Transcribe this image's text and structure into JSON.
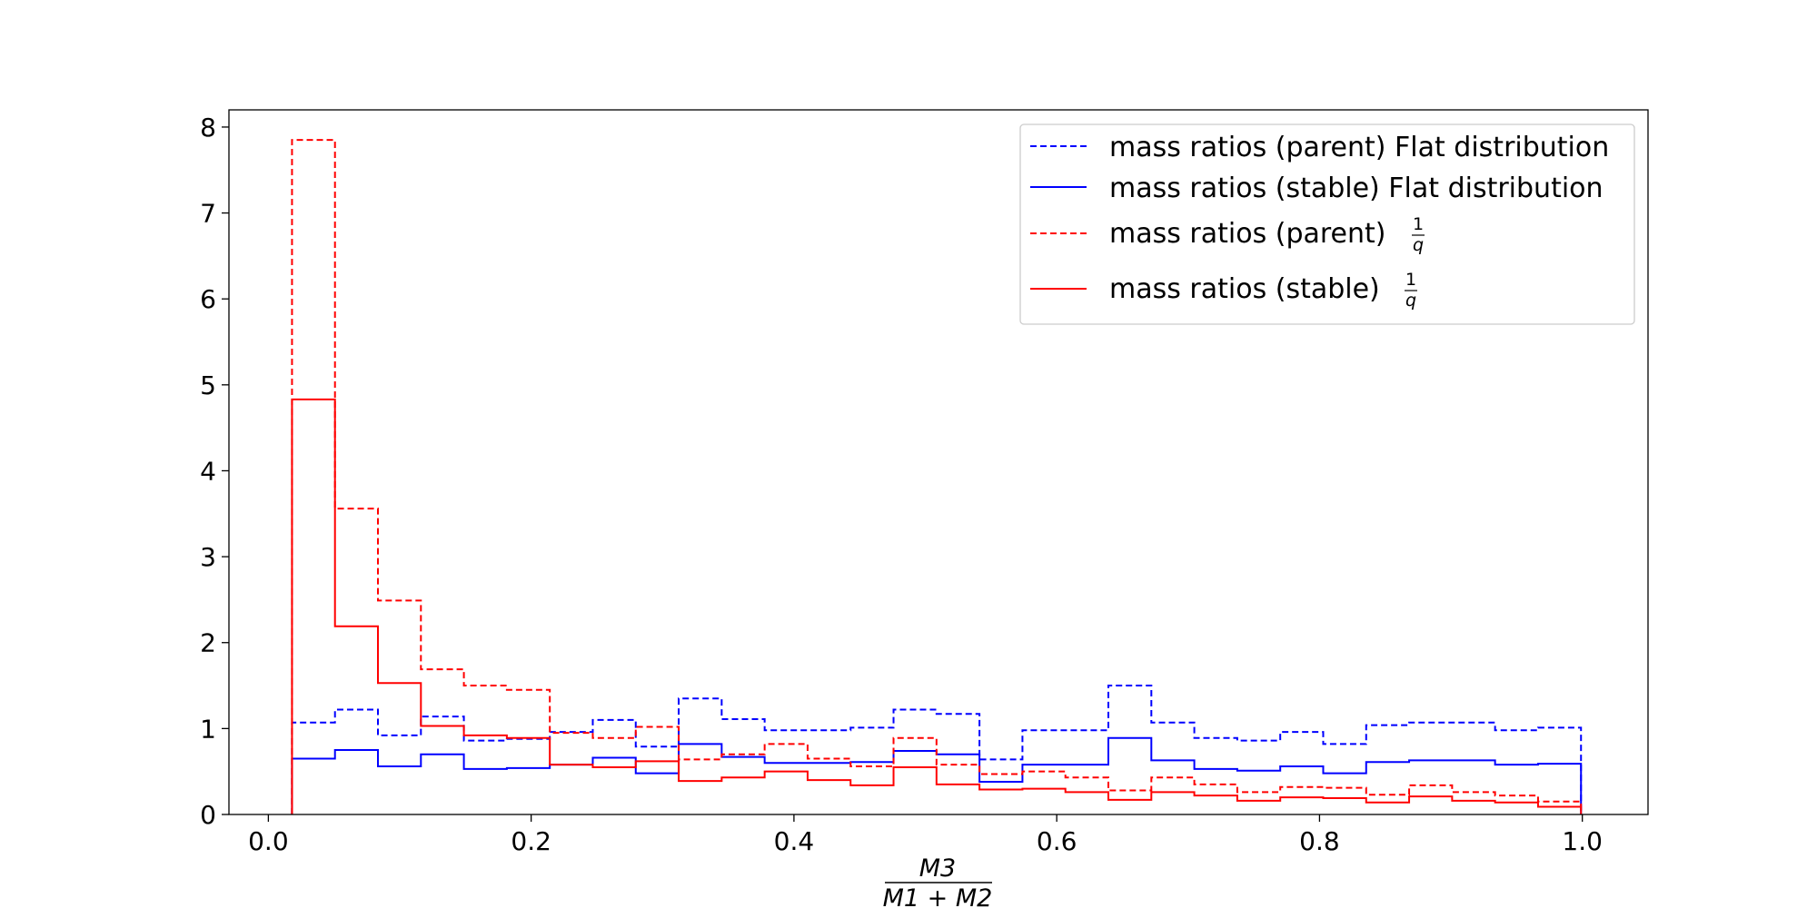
{
  "chart_data": {
    "type": "step",
    "title": "",
    "xlabel": {
      "numerator": "M3",
      "denominator": "M1 + M2"
    },
    "ylabel": "",
    "xlim": [
      -0.03,
      1.05
    ],
    "ylim": [
      0,
      8.2
    ],
    "xticks": [
      "0.0",
      "0.2",
      "0.4",
      "0.6",
      "0.8",
      "1.0"
    ],
    "yticks": [
      "0",
      "1",
      "2",
      "3",
      "4",
      "5",
      "6",
      "7",
      "8"
    ],
    "legend_position": "top-right",
    "grid": false,
    "bin_edges": [
      0.018,
      0.0507,
      0.0834,
      0.1161,
      0.1488,
      0.1815,
      0.2142,
      0.2469,
      0.2796,
      0.3123,
      0.345,
      0.3777,
      0.4104,
      0.4431,
      0.4758,
      0.5085,
      0.5412,
      0.5739,
      0.6066,
      0.6393,
      0.672,
      0.7047,
      0.7374,
      0.7701,
      0.8028,
      0.8355,
      0.8682,
      0.9009,
      0.9336,
      0.9663,
      0.999
    ],
    "series": [
      {
        "name": "mass ratios (parent) Flat distribution",
        "color": "#0000ff",
        "dashed": true,
        "values": [
          1.07,
          1.22,
          0.92,
          1.14,
          0.86,
          0.88,
          0.96,
          1.1,
          0.79,
          1.35,
          1.11,
          0.98,
          0.98,
          1.01,
          1.22,
          1.17,
          0.64,
          0.98,
          0.98,
          1.5,
          1.07,
          0.89,
          0.86,
          0.96,
          0.82,
          1.04,
          1.07,
          1.07,
          0.98,
          1.01
        ]
      },
      {
        "name": "mass ratios (stable) Flat distribution",
        "color": "#0000ff",
        "dashed": false,
        "values": [
          0.65,
          0.75,
          0.56,
          0.7,
          0.53,
          0.54,
          0.58,
          0.66,
          0.48,
          0.82,
          0.67,
          0.6,
          0.6,
          0.61,
          0.74,
          0.7,
          0.38,
          0.58,
          0.58,
          0.89,
          0.63,
          0.53,
          0.51,
          0.56,
          0.48,
          0.61,
          0.63,
          0.63,
          0.58,
          0.59
        ]
      },
      {
        "name": "mass ratios (parent)",
        "name_fraction": {
          "numerator": "1",
          "denominator": "q"
        },
        "color": "#ff0000",
        "dashed": true,
        "values": [
          7.85,
          3.56,
          2.49,
          1.69,
          1.5,
          1.45,
          0.95,
          0.89,
          1.02,
          0.64,
          0.7,
          0.82,
          0.65,
          0.56,
          0.89,
          0.58,
          0.47,
          0.5,
          0.43,
          0.28,
          0.43,
          0.35,
          0.26,
          0.32,
          0.31,
          0.23,
          0.34,
          0.26,
          0.22,
          0.15
        ]
      },
      {
        "name": "mass ratios (stable)",
        "name_fraction": {
          "numerator": "1",
          "denominator": "q"
        },
        "color": "#ff0000",
        "dashed": false,
        "values": [
          4.83,
          2.19,
          1.53,
          1.03,
          0.92,
          0.89,
          0.58,
          0.55,
          0.62,
          0.39,
          0.43,
          0.5,
          0.4,
          0.34,
          0.55,
          0.35,
          0.29,
          0.3,
          0.26,
          0.17,
          0.26,
          0.22,
          0.16,
          0.2,
          0.19,
          0.14,
          0.21,
          0.16,
          0.14,
          0.09
        ]
      }
    ]
  }
}
